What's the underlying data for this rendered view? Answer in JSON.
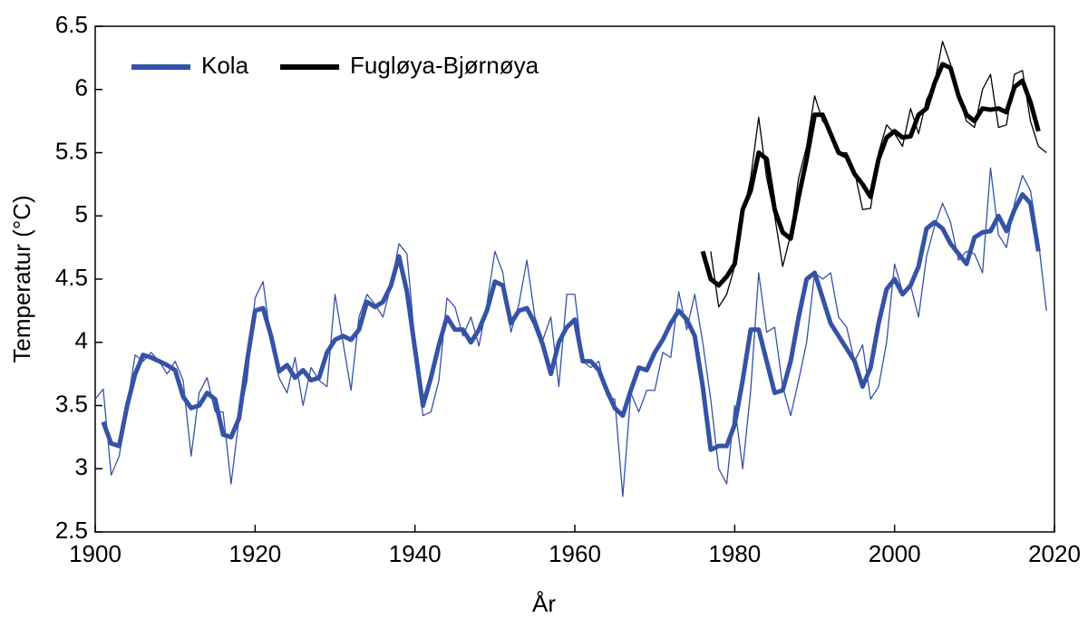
{
  "chart_data": {
    "type": "line",
    "xlabel": "År",
    "ylabel": "Temperatur (°C)",
    "xlim": [
      1900,
      2020
    ],
    "xticks": [
      1900,
      1920,
      1940,
      1960,
      1980,
      2000,
      2020
    ],
    "ylim": [
      2.5,
      6.5
    ],
    "yticks": [
      2.5,
      3,
      3.5,
      4,
      4.5,
      5,
      5.5,
      6,
      6.5
    ],
    "legend": "upper left",
    "x": [
      1900,
      1901,
      1902,
      1903,
      1904,
      1905,
      1906,
      1907,
      1908,
      1909,
      1910,
      1911,
      1912,
      1913,
      1914,
      1915,
      1916,
      1917,
      1918,
      1919,
      1920,
      1921,
      1922,
      1923,
      1924,
      1925,
      1926,
      1927,
      1928,
      1929,
      1930,
      1931,
      1932,
      1933,
      1934,
      1935,
      1936,
      1937,
      1938,
      1939,
      1940,
      1941,
      1942,
      1943,
      1944,
      1945,
      1946,
      1947,
      1948,
      1949,
      1950,
      1951,
      1952,
      1953,
      1954,
      1955,
      1956,
      1957,
      1958,
      1959,
      1960,
      1961,
      1962,
      1963,
      1964,
      1965,
      1966,
      1967,
      1968,
      1969,
      1970,
      1971,
      1972,
      1973,
      1974,
      1975,
      1976,
      1977,
      1978,
      1979,
      1980,
      1981,
      1982,
      1983,
      1984,
      1985,
      1986,
      1987,
      1988,
      1989,
      1990,
      1991,
      1992,
      1993,
      1994,
      1995,
      1996,
      1997,
      1998,
      1999,
      2000,
      2001,
      2002,
      2003,
      2004,
      2005,
      2006,
      2007,
      2008,
      2009,
      2010,
      2011,
      2012,
      2013,
      2014,
      2015,
      2016,
      2017,
      2018,
      2019
    ],
    "series": [
      {
        "name": "Kola",
        "color": "#3553a6",
        "values": [
          3.55,
          3.63,
          2.95,
          3.1,
          3.5,
          3.9,
          3.85,
          3.92,
          3.85,
          3.75,
          3.85,
          3.7,
          3.1,
          3.6,
          3.72,
          3.45,
          3.45,
          2.88,
          3.4,
          3.7,
          4.35,
          4.48,
          4.0,
          3.72,
          3.6,
          3.88,
          3.5,
          3.8,
          3.7,
          3.65,
          4.38,
          4.0,
          3.62,
          4.2,
          4.38,
          4.3,
          4.2,
          4.45,
          4.78,
          4.7,
          4.0,
          3.42,
          3.45,
          3.7,
          4.35,
          4.28,
          4.05,
          4.2,
          3.97,
          4.3,
          4.72,
          4.55,
          4.08,
          4.3,
          4.65,
          4.2,
          4.02,
          4.2,
          3.65,
          4.38,
          4.38,
          3.85,
          3.8,
          3.85,
          3.58,
          3.55,
          2.78,
          3.6,
          3.45,
          3.62,
          3.62,
          3.92,
          3.88,
          4.4,
          4.1,
          4.38,
          4.0,
          3.55,
          3.0,
          2.88,
          3.5,
          3.0,
          3.62,
          4.55,
          4.08,
          4.12,
          3.65,
          3.42,
          3.7,
          4.0,
          4.55,
          4.5,
          4.55,
          4.2,
          4.12,
          3.85,
          3.98,
          3.55,
          3.65,
          4.0,
          4.62,
          4.4,
          4.45,
          4.2,
          4.68,
          4.92,
          5.1,
          4.95,
          4.65,
          4.72,
          4.7,
          4.55,
          5.38,
          4.85,
          4.75,
          5.1,
          5.32,
          5.2,
          4.8,
          4.25
        ],
        "smoothed": [
          null,
          3.37,
          3.2,
          3.18,
          3.5,
          3.75,
          3.9,
          3.88,
          3.85,
          3.82,
          3.78,
          3.57,
          3.48,
          3.5,
          3.6,
          3.55,
          3.27,
          3.25,
          3.4,
          3.85,
          4.25,
          4.27,
          4.05,
          3.77,
          3.82,
          3.72,
          3.78,
          3.7,
          3.72,
          3.92,
          4.02,
          4.05,
          4.02,
          4.1,
          4.32,
          4.28,
          4.32,
          4.45,
          4.68,
          4.4,
          3.95,
          3.5,
          3.72,
          3.98,
          4.2,
          4.1,
          4.1,
          4.0,
          4.1,
          4.25,
          4.48,
          4.45,
          4.15,
          4.25,
          4.27,
          4.15,
          3.98,
          3.75,
          4.0,
          4.12,
          4.18,
          3.85,
          3.85,
          3.78,
          3.62,
          3.48,
          3.42,
          3.62,
          3.8,
          3.78,
          3.92,
          4.02,
          4.15,
          4.25,
          4.18,
          4.05,
          3.65,
          3.15,
          3.18,
          3.18,
          3.35,
          3.7,
          4.1,
          4.1,
          3.85,
          3.6,
          3.62,
          3.85,
          4.2,
          4.5,
          4.55,
          4.35,
          4.15,
          4.05,
          3.95,
          3.85,
          3.65,
          3.8,
          4.15,
          4.42,
          4.5,
          4.38,
          4.45,
          4.6,
          4.9,
          4.95,
          4.9,
          4.78,
          4.7,
          4.62,
          4.83,
          4.87,
          4.88,
          5.0,
          4.88,
          5.05,
          5.17,
          5.1,
          4.72,
          null
        ]
      },
      {
        "name": "Fugløya-Bjørnøya",
        "color": "#000000",
        "values": [
          null,
          null,
          null,
          null,
          null,
          null,
          null,
          null,
          null,
          null,
          null,
          null,
          null,
          null,
          null,
          null,
          null,
          null,
          null,
          null,
          null,
          null,
          null,
          null,
          null,
          null,
          null,
          null,
          null,
          null,
          null,
          null,
          null,
          null,
          null,
          null,
          null,
          null,
          null,
          null,
          null,
          null,
          null,
          null,
          null,
          null,
          null,
          null,
          null,
          null,
          null,
          null,
          null,
          null,
          null,
          null,
          null,
          null,
          null,
          null,
          null,
          null,
          null,
          null,
          null,
          null,
          null,
          null,
          null,
          null,
          null,
          null,
          null,
          null,
          null,
          null,
          null,
          4.72,
          4.28,
          4.38,
          4.6,
          5.0,
          5.3,
          5.78,
          5.3,
          5.0,
          4.6,
          4.85,
          5.3,
          5.55,
          5.95,
          5.75,
          5.68,
          5.5,
          5.5,
          5.35,
          5.05,
          5.06,
          5.5,
          5.72,
          5.65,
          5.55,
          5.85,
          5.65,
          5.92,
          6.05,
          6.38,
          6.2,
          5.95,
          5.75,
          5.7,
          6.0,
          6.12,
          5.7,
          5.72,
          6.12,
          6.15,
          5.75,
          5.55,
          5.5
        ],
        "smoothed": [
          null,
          null,
          null,
          null,
          null,
          null,
          null,
          null,
          null,
          null,
          null,
          null,
          null,
          null,
          null,
          null,
          null,
          null,
          null,
          null,
          null,
          null,
          null,
          null,
          null,
          null,
          null,
          null,
          null,
          null,
          null,
          null,
          null,
          null,
          null,
          null,
          null,
          null,
          null,
          null,
          null,
          null,
          null,
          null,
          null,
          null,
          null,
          null,
          null,
          null,
          null,
          null,
          null,
          null,
          null,
          null,
          null,
          null,
          null,
          null,
          null,
          null,
          null,
          null,
          null,
          null,
          null,
          null,
          null,
          null,
          null,
          null,
          null,
          null,
          null,
          null,
          4.72,
          4.5,
          4.45,
          4.52,
          4.62,
          5.05,
          5.2,
          5.5,
          5.45,
          5.05,
          4.87,
          4.82,
          5.15,
          5.45,
          5.8,
          5.8,
          5.65,
          5.5,
          5.47,
          5.33,
          5.25,
          5.15,
          5.45,
          5.62,
          5.67,
          5.62,
          5.63,
          5.8,
          5.85,
          6.05,
          6.2,
          6.17,
          5.95,
          5.8,
          5.75,
          5.85,
          5.84,
          5.85,
          5.82,
          6.02,
          6.07,
          5.9,
          5.67,
          null
        ]
      }
    ]
  }
}
